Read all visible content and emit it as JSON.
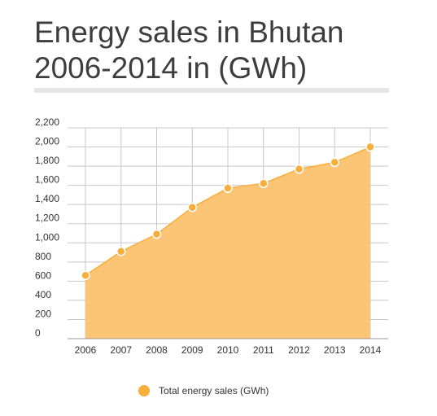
{
  "title_line1": "Energy sales in Bhutan",
  "title_line2": "2006-2014 in (GWh)",
  "colors": {
    "area": "#fbc575",
    "marker": "#f7ae3a",
    "marker_stroke": "#ffffff",
    "grid": "#c8c8c8",
    "text": "#333333"
  },
  "chart_data": {
    "type": "area",
    "x": [
      "2006",
      "2007",
      "2008",
      "2009",
      "2010",
      "2011",
      "2012",
      "2013",
      "2014"
    ],
    "series": [
      {
        "name": "Total energy sales (GWh)",
        "values": [
          660,
          910,
          1090,
          1370,
          1570,
          1620,
          1770,
          1840,
          2000
        ]
      }
    ],
    "yticks": [
      "0",
      "200",
      "400",
      "600",
      "800",
      "1,000",
      "1,200",
      "1,400",
      "1,600",
      "1,800",
      "2,000",
      "2,200"
    ],
    "ylim": [
      0,
      2200
    ],
    "grid": true,
    "legend_position": "bottom-center"
  }
}
